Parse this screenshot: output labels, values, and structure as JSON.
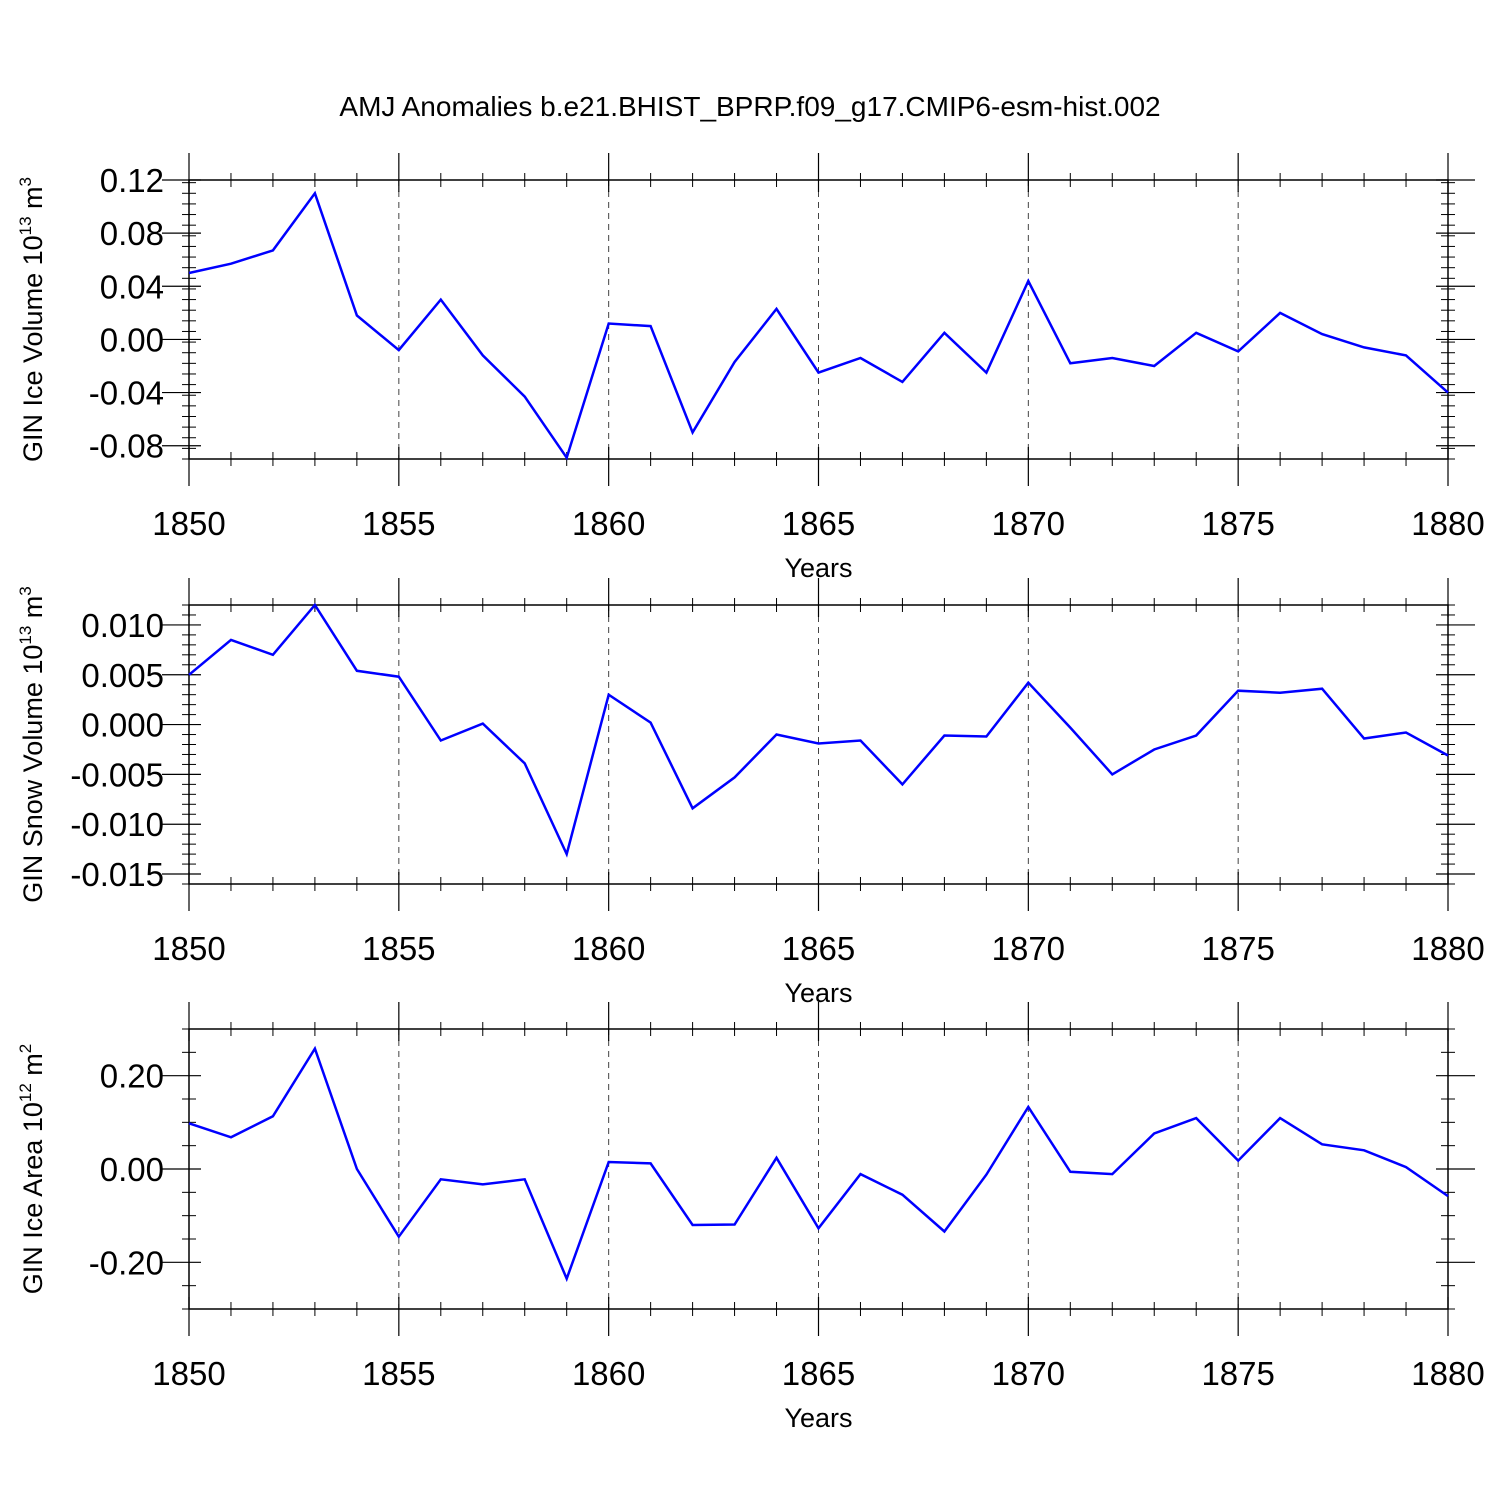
{
  "figure_title": "AMJ Anomalies b.e21.BHIST_BPRP.f09_g17.CMIP6-esm-hist.002",
  "line_color": "#0000ff",
  "chart_data": [
    {
      "type": "line",
      "title": "AMJ Anomalies b.e21.BHIST_BPRP.f09_g17.CMIP6-esm-hist.002",
      "xlabel": "Years",
      "ylabel": {
        "prefix": "GIN Ice Volume 10",
        "exponent": "13",
        "unit": " m",
        "unit_exponent": "3"
      },
      "x": [
        1850,
        1851,
        1852,
        1853,
        1854,
        1855,
        1856,
        1857,
        1858,
        1859,
        1860,
        1861,
        1862,
        1863,
        1864,
        1865,
        1866,
        1867,
        1868,
        1869,
        1870,
        1871,
        1872,
        1873,
        1874,
        1875,
        1876,
        1877,
        1878,
        1879,
        1880
      ],
      "values": [
        0.05,
        0.057,
        0.067,
        0.11,
        0.018,
        -0.008,
        0.03,
        -0.012,
        -0.043,
        -0.089,
        0.012,
        0.01,
        -0.07,
        -0.017,
        0.023,
        -0.025,
        -0.014,
        -0.032,
        0.005,
        -0.025,
        0.044,
        -0.018,
        -0.014,
        -0.02,
        0.005,
        -0.009,
        0.02,
        0.004,
        -0.006,
        -0.012,
        -0.04
      ],
      "xlim": [
        1850,
        1880
      ],
      "ylim": [
        -0.09,
        0.12
      ],
      "xticks": [
        1850,
        1855,
        1860,
        1865,
        1870,
        1875,
        1880
      ],
      "xtick_labels": [
        "1850",
        "1855",
        "1860",
        "1865",
        "1870",
        "1875",
        "1880"
      ],
      "yticks": [
        0.12,
        0.08,
        0.04,
        0.0,
        -0.04,
        -0.08
      ],
      "ytick_labels": [
        "0.12",
        "0.08",
        "0.04",
        "0.00",
        "-0.04",
        "-0.08"
      ],
      "yminor_step": 0.008
    },
    {
      "type": "line",
      "xlabel": "Years",
      "ylabel": {
        "prefix": "GIN Snow Volume 10",
        "exponent": "13",
        "unit": " m",
        "unit_exponent": "3"
      },
      "x": [
        1850,
        1851,
        1852,
        1853,
        1854,
        1855,
        1856,
        1857,
        1858,
        1859,
        1860,
        1861,
        1862,
        1863,
        1864,
        1865,
        1866,
        1867,
        1868,
        1869,
        1870,
        1871,
        1872,
        1873,
        1874,
        1875,
        1876,
        1877,
        1878,
        1879,
        1880
      ],
      "values": [
        0.005,
        0.0085,
        0.007,
        0.012,
        0.0054,
        0.0048,
        -0.0016,
        0.0001,
        -0.0039,
        -0.013,
        0.003,
        0.0002,
        -0.0084,
        -0.0053,
        -0.001,
        -0.0019,
        -0.0016,
        -0.006,
        -0.0011,
        -0.0012,
        0.0042,
        -0.0003,
        -0.005,
        -0.0025,
        -0.0011,
        0.0034,
        0.0032,
        0.0036,
        -0.0014,
        -0.0008,
        -0.0031
      ],
      "xlim": [
        1850,
        1880
      ],
      "ylim": [
        -0.016,
        0.012
      ],
      "xticks": [
        1850,
        1855,
        1860,
        1865,
        1870,
        1875,
        1880
      ],
      "xtick_labels": [
        "1850",
        "1855",
        "1860",
        "1865",
        "1870",
        "1875",
        "1880"
      ],
      "yticks": [
        0.01,
        0.005,
        0.0,
        -0.005,
        -0.01,
        -0.015
      ],
      "ytick_labels": [
        "0.010",
        "0.005",
        "0.000",
        "-0.005",
        "-0.010",
        "-0.015"
      ],
      "yminor_step": 0.001
    },
    {
      "type": "line",
      "xlabel": "Years",
      "ylabel": {
        "prefix": "GIN Ice Area 10",
        "exponent": "12",
        "unit": " m",
        "unit_exponent": "2"
      },
      "x": [
        1850,
        1851,
        1852,
        1853,
        1854,
        1855,
        1856,
        1857,
        1858,
        1859,
        1860,
        1861,
        1862,
        1863,
        1864,
        1865,
        1866,
        1867,
        1868,
        1869,
        1870,
        1871,
        1872,
        1873,
        1874,
        1875,
        1876,
        1877,
        1878,
        1879,
        1880
      ],
      "values": [
        0.098,
        0.068,
        0.113,
        0.258,
        0.0,
        -0.145,
        -0.022,
        -0.033,
        -0.022,
        -0.235,
        0.015,
        0.012,
        -0.12,
        -0.119,
        0.024,
        -0.127,
        -0.011,
        -0.055,
        -0.134,
        -0.012,
        0.133,
        -0.006,
        -0.011,
        0.076,
        0.109,
        0.018,
        0.109,
        0.053,
        0.04,
        0.004,
        -0.058
      ],
      "xlim": [
        1850,
        1880
      ],
      "ylim": [
        -0.3,
        0.3
      ],
      "xticks": [
        1850,
        1855,
        1860,
        1865,
        1870,
        1875,
        1880
      ],
      "xtick_labels": [
        "1850",
        "1855",
        "1860",
        "1865",
        "1870",
        "1875",
        "1880"
      ],
      "yticks": [
        0.2,
        0.0,
        -0.2
      ],
      "ytick_labels": [
        "0.20",
        "0.00",
        "-0.20"
      ],
      "yminor_step": 0.05
    }
  ]
}
